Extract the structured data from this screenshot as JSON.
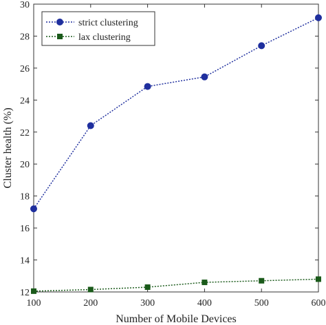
{
  "chart_data": {
    "type": "line",
    "title": "",
    "xlabel": "Number of Mobile Devices",
    "ylabel": "Cluster health (%)",
    "x": [
      100,
      200,
      300,
      400,
      500,
      600
    ],
    "xticks": [
      "100",
      "200",
      "300",
      "400",
      "500",
      "600"
    ],
    "yticks": [
      "12",
      "14",
      "16",
      "18",
      "20",
      "22",
      "24",
      "26",
      "28",
      "30"
    ],
    "xlim": [
      100,
      600
    ],
    "ylim": [
      12,
      30
    ],
    "grid": false,
    "legend_position": "top-left",
    "series": [
      {
        "name": "strict clustering",
        "values": [
          17.2,
          22.4,
          24.85,
          25.45,
          27.4,
          29.15
        ],
        "color": "#1f2f9e",
        "marker": "circle",
        "linestyle": "dotted"
      },
      {
        "name": "lax clustering",
        "values": [
          12.05,
          12.15,
          12.3,
          12.6,
          12.7,
          12.8
        ],
        "color": "#1a5a1a",
        "marker": "square",
        "linestyle": "dotted"
      }
    ]
  }
}
